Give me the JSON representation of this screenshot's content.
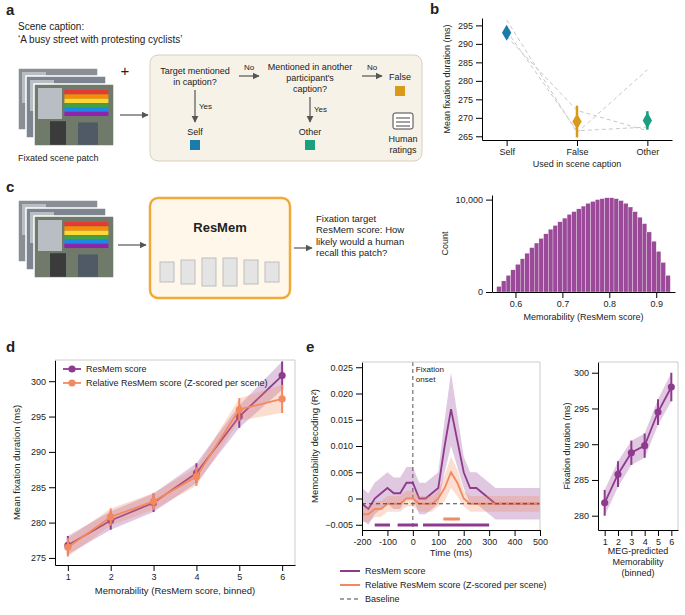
{
  "chart_data": [
    {
      "type": "scatter",
      "panel": "b",
      "xlabel": "Used in scene caption",
      "ylabel": "Mean fixation duration (ms)",
      "categories": [
        "Self",
        "False",
        "Other"
      ],
      "values": [
        293,
        269,
        269.3
      ],
      "errors": [
        1.2,
        4.3,
        2.5
      ],
      "colors": [
        "#1b7bab",
        "#d99a1a",
        "#1aa07f"
      ],
      "marker": "diamond",
      "ylim": [
        264,
        297
      ],
      "yticks": [
        265,
        270,
        275,
        280,
        285,
        290,
        295
      ],
      "series": [
        {
          "values": [
            296.5,
            266,
            283
          ],
          "color": "#c8c8c8",
          "line_style": "dashed"
        },
        {
          "values": [
            292,
            272,
            266.5
          ],
          "color": "#c8c8c8",
          "line_style": "dashed"
        },
        {
          "values": [
            293.5,
            266.5,
            267.5
          ],
          "color": "#c8c8c8",
          "line_style": "dashed"
        }
      ]
    },
    {
      "type": "histogram",
      "xlabel": "Memorability (ResMem score)",
      "ylabel": "Count",
      "color": "#9b4a99",
      "bins": [
        0.56,
        0.57,
        0.58,
        0.59,
        0.6,
        0.61,
        0.62,
        0.63,
        0.64,
        0.65,
        0.66,
        0.67,
        0.68,
        0.69,
        0.7,
        0.71,
        0.72,
        0.73,
        0.74,
        0.75,
        0.76,
        0.77,
        0.78,
        0.79,
        0.8,
        0.81,
        0.82,
        0.83,
        0.84,
        0.85,
        0.86,
        0.87,
        0.88,
        0.89,
        0.9,
        0.91,
        0.92,
        0.93
      ],
      "counts": [
        600,
        1200,
        1800,
        2400,
        3000,
        3600,
        4200,
        4800,
        5300,
        5800,
        6300,
        6800,
        7200,
        7600,
        8000,
        8400,
        8700,
        9000,
        9300,
        9600,
        9800,
        10000,
        10100,
        10200,
        10200,
        10100,
        9900,
        9600,
        9200,
        8700,
        8100,
        7400,
        6500,
        5500,
        4400,
        3200,
        1800
      ],
      "xlim": [
        0.55,
        0.94
      ],
      "xticks": [
        0.6,
        0.7,
        0.8,
        0.9
      ],
      "ylim": [
        0,
        10500
      ],
      "yticks": [
        0,
        {
          "value": 10000,
          "label": "10,000"
        }
      ]
    },
    {
      "type": "line",
      "panel": "d",
      "xlabel": "Memorability (ResMem score, binned)",
      "ylabel": "Mean fixation duration (ms)",
      "x": [
        1,
        2,
        3,
        4,
        5,
        6
      ],
      "xlim": [
        0.7,
        6.3
      ],
      "xticks": [
        1,
        2,
        3,
        4,
        5,
        6
      ],
      "ylim": [
        274,
        303
      ],
      "yticks": [
        275,
        280,
        285,
        290,
        295,
        300
      ],
      "legend": "top-left",
      "marker": "circle",
      "series": [
        {
          "name": "ResMem score",
          "color": "#8e3a8f",
          "values": [
            276.8,
            280.3,
            282.8,
            287,
            295,
            300.8
          ],
          "errors": [
            1.3,
            1.3,
            1.3,
            1.4,
            1.6,
            2
          ]
        },
        {
          "name": "Relative ResMem score (Z-scored per scene)",
          "color": "#f2895f",
          "values": [
            276.5,
            280.8,
            283,
            286.5,
            296,
            297.5
          ],
          "errors": [
            1.3,
            1.2,
            1.2,
            1.3,
            1.6,
            2
          ]
        }
      ]
    },
    {
      "type": "line",
      "panel": "e",
      "xlabel": "Time (ms)",
      "ylabel": "Memorability decoding (R²)",
      "x": [
        -200,
        -175,
        -150,
        -125,
        -100,
        -75,
        -50,
        -25,
        0,
        25,
        50,
        75,
        100,
        125,
        150,
        175,
        200,
        225,
        250,
        275,
        300,
        325,
        350,
        375,
        400,
        425,
        450,
        475,
        500
      ],
      "xlim": [
        -200,
        500
      ],
      "xticks": [
        -200,
        -100,
        0,
        100,
        200,
        300,
        400,
        500
      ],
      "ylim": [
        -0.006,
        0.026
      ],
      "yticks": [
        {
          "value": -0.005,
          "label": "−0.005"
        },
        0,
        0.005,
        {
          "value": 0.01,
          "label": "0.010"
        },
        0.015,
        {
          "value": 0.02,
          "label": "0.020"
        },
        0.025
      ],
      "legend": "bottom",
      "annotations": [
        {
          "text": "Fixation onset",
          "x": 0
        }
      ],
      "series": [
        {
          "name": "ResMem score",
          "color": "#8e3a8f",
          "values": [
            -0.001,
            -0.002,
            0,
            0.001,
            0.002,
            0.001,
            0.001,
            0.003,
            0.003,
            0,
            0,
            0.001,
            0.002,
            0.01,
            0.017,
            0.011,
            0.005,
            0.002,
            0.002,
            0.001,
            0,
            -0.001,
            -0.001,
            -0.001,
            -0.001,
            -0.001,
            -0.001,
            -0.001,
            -0.001
          ],
          "errors": [
            0.003,
            0.003,
            0.003,
            0.003,
            0.003,
            0.003,
            0.003,
            0.003,
            0.003,
            0.003,
            0.003,
            0.003,
            0.003,
            0.005,
            0.007,
            0.005,
            0.003,
            0.003,
            0.003,
            0.003,
            0.003,
            0.003,
            0.003,
            0.003,
            0.003,
            0.003,
            0.003,
            0.003,
            0.003
          ],
          "significant": [
            [
              -150,
              -90
            ],
            [
              -60,
              20
            ],
            [
              40,
              300
            ]
          ]
        },
        {
          "name": "Relative ResMem score (Z-scored per scene)",
          "color": "#f2895f",
          "values": [
            -0.003,
            -0.003,
            -0.002,
            -0.002,
            -0.001,
            -0.001,
            -0.001,
            0,
            0,
            -0.001,
            -0.001,
            -0.001,
            0,
            0.002,
            0.005,
            0.003,
            0,
            -0.001,
            -0.001,
            -0.001,
            -0.001,
            -0.001,
            -0.001,
            -0.001,
            -0.001,
            -0.001,
            -0.001,
            -0.001,
            -0.001
          ],
          "errors": [
            0.0015,
            0.0015,
            0.0015,
            0.0015,
            0.0015,
            0.0015,
            0.0015,
            0.0015,
            0.0015,
            0.0015,
            0.0015,
            0.0015,
            0.0015,
            0.0025,
            0.003,
            0.0025,
            0.0015,
            0.0015,
            0.0015,
            0.0015,
            0.0015,
            0.0015,
            0.0015,
            0.0015,
            0.0015,
            0.0015,
            0.0015,
            0.0015,
            0.0015
          ],
          "significant": [
            [
              120,
              185
            ]
          ]
        },
        {
          "name": "Baseline",
          "color": "#444444",
          "line_style": "dashed",
          "values": [
            -0.001,
            -0.001,
            -0.001,
            -0.001,
            -0.001,
            -0.001,
            -0.001,
            -0.001,
            -0.001,
            -0.001,
            -0.001,
            -0.001,
            -0.001,
            -0.001,
            -0.001,
            -0.001,
            -0.001,
            -0.001,
            -0.001,
            -0.001,
            -0.001,
            -0.001,
            -0.001,
            -0.001,
            -0.001,
            -0.001,
            -0.001,
            -0.001,
            -0.001
          ]
        }
      ]
    },
    {
      "type": "line",
      "xlabel": "MEG-predicted Memorability (binned)",
      "ylabel": "Fixation duration (ms)",
      "x": [
        1,
        2,
        3,
        4,
        5,
        6
      ],
      "xlim": [
        0.5,
        6.5
      ],
      "xticks": [
        1,
        2,
        3,
        4,
        5,
        6
      ],
      "ylim": [
        278,
        301.5
      ],
      "yticks": [
        280,
        285,
        290,
        295,
        300
      ],
      "marker": "circle",
      "series": [
        {
          "color": "#8e3a8f",
          "values": [
            281.8,
            285.8,
            288.8,
            289.8,
            294.5,
            298
          ],
          "errors": [
            1.8,
            1.8,
            1.7,
            1.7,
            1.8,
            2
          ]
        }
      ]
    }
  ],
  "diagrams": {
    "a": {
      "label": "a",
      "caption_title": "Scene caption:",
      "caption": "‘A busy street with protesting cyclists’",
      "plus": "+",
      "patch_label": "Fixated scene patch",
      "question_1": "Target mentioned in caption?",
      "question_2": "Mentioned in another participant's caption?",
      "yes_1": "Yes",
      "no_1": "No",
      "yes_2": "Yes",
      "no_2": "No",
      "self": "Self",
      "other": "Other",
      "false": "False",
      "ratings": "Human ratings"
    },
    "c": {
      "label": "c",
      "model": "ResMem",
      "question": "Fixation target ResMem score: How likely would a human recall this patch?"
    }
  }
}
